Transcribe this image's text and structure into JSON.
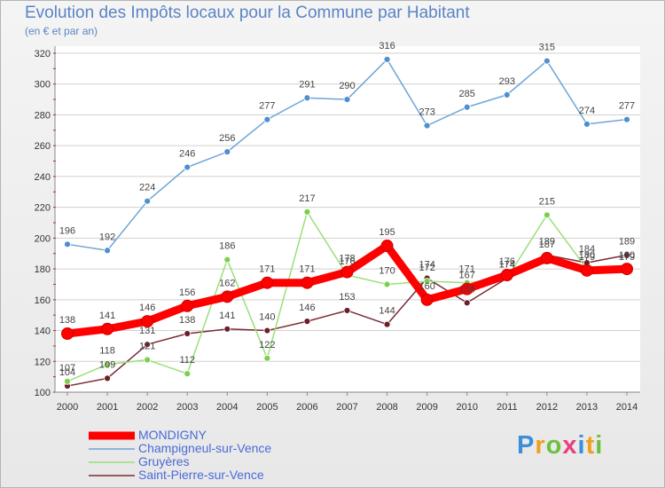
{
  "chart_data": {
    "type": "line",
    "title": "Evolution des Impôts locaux pour la Commune par Habitant",
    "subtitle": "(en € et par an)",
    "categories": [
      "2000",
      "2001",
      "2002",
      "2003",
      "2004",
      "2005",
      "2006",
      "2007",
      "2008",
      "2009",
      "2010",
      "2011",
      "2012",
      "2013",
      "2014"
    ],
    "ylim": [
      100,
      320
    ],
    "yticks": [
      100,
      120,
      140,
      160,
      180,
      200,
      220,
      240,
      260,
      280,
      300,
      320
    ],
    "series": [
      {
        "name": "MONDIGNY",
        "color": "#ff0000",
        "marker": "#ff0000",
        "values": [
          138,
          141,
          146,
          156,
          162,
          171,
          171,
          178,
          195,
          160,
          167,
          176,
          187,
          179,
          180
        ],
        "labels": [
          "138",
          "141",
          "146",
          "156",
          "162",
          "171",
          "171",
          "178",
          "195",
          "160",
          "167",
          "176",
          "187",
          "179",
          "180"
        ]
      },
      {
        "name": "Champigneul-sur-Vence",
        "color": "#6ea6d8",
        "marker": "#4f8fd0",
        "values": [
          196,
          192,
          224,
          246,
          256,
          277,
          291,
          290,
          316,
          273,
          285,
          293,
          315,
          274,
          277
        ],
        "labels": [
          "196",
          "192",
          "224",
          "246",
          "256",
          "277",
          "291",
          "290",
          "316",
          "273",
          "285",
          "293",
          "315",
          "274",
          "277"
        ]
      },
      {
        "name": "Gruyères",
        "color": "#99e07a",
        "marker": "#7ad04a",
        "values": [
          107,
          118,
          121,
          112,
          186,
          122,
          217,
          176,
          170,
          172,
          171,
          174,
          215,
          180,
          179
        ],
        "labels": [
          "107",
          "118",
          "121",
          "112",
          "186",
          "122",
          "217",
          "176",
          "170",
          "172",
          "171",
          "174",
          "215",
          "180",
          "179"
        ]
      },
      {
        "name": "Saint-Pierre-sur-Vence",
        "color": "#7a2b36",
        "marker": "#6a1f2a",
        "values": [
          104,
          109,
          131,
          138,
          141,
          140,
          146,
          153,
          144,
          174,
          158,
          174,
          189,
          184,
          189
        ],
        "labels": [
          "104",
          "109",
          "131",
          "138",
          "141",
          "140",
          "146",
          "153",
          "144",
          "174",
          "158",
          "174",
          "189",
          "184",
          "189"
        ]
      }
    ]
  },
  "legend": {
    "items": [
      "MONDIGNY",
      "Champigneul-sur-Vence",
      "Gruyères",
      "Saint-Pierre-sur-Vence"
    ]
  },
  "brand": {
    "name": "Proxiti"
  }
}
